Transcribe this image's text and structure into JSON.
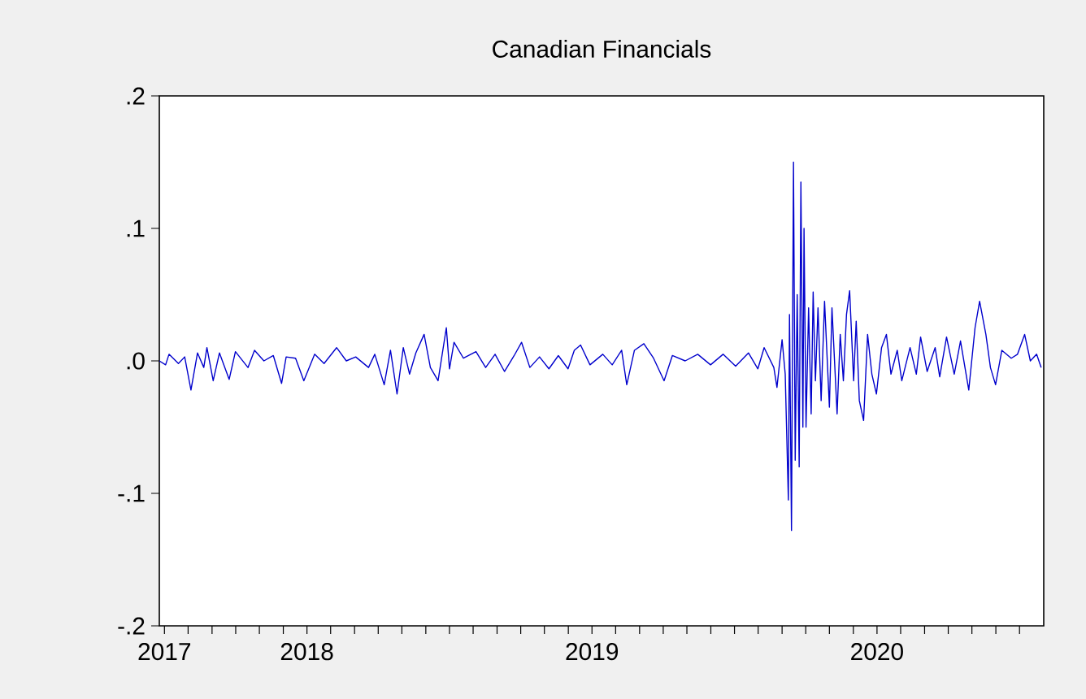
{
  "chart_data": {
    "type": "line",
    "title": "Canadian Financials",
    "x": [
      2017.482,
      2017.504,
      2017.516,
      2017.549,
      2017.571,
      2017.593,
      2017.616,
      2017.638,
      2017.649,
      2017.671,
      2017.693,
      2017.727,
      2017.749,
      2017.793,
      2017.816,
      2017.849,
      2017.882,
      2017.911,
      2017.927,
      2017.96,
      2017.989,
      2018.027,
      2018.06,
      2018.104,
      2018.138,
      2018.171,
      2018.216,
      2018.238,
      2018.271,
      2018.293,
      2018.316,
      2018.338,
      2018.36,
      2018.382,
      2018.411,
      2018.433,
      2018.46,
      2018.489,
      2018.5,
      2018.516,
      2018.549,
      2018.593,
      2018.627,
      2018.66,
      2018.693,
      2018.727,
      2018.753,
      2018.782,
      2018.816,
      2018.849,
      2018.882,
      2018.916,
      2018.938,
      2018.96,
      2018.993,
      2019.038,
      2019.071,
      2019.104,
      2019.122,
      2019.149,
      2019.182,
      2019.216,
      2019.253,
      2019.282,
      2019.327,
      2019.371,
      2019.416,
      2019.46,
      2019.504,
      2019.549,
      2019.582,
      2019.604,
      2019.638,
      2019.649,
      2019.667,
      2019.678,
      2019.689,
      2019.693,
      2019.7,
      2019.707,
      2019.713,
      2019.72,
      2019.727,
      2019.733,
      2019.74,
      2019.744,
      2019.751,
      2019.76,
      2019.769,
      2019.776,
      2019.784,
      2019.793,
      2019.804,
      2019.816,
      2019.833,
      2019.842,
      2019.86,
      2019.871,
      2019.882,
      2019.893,
      2019.904,
      2019.918,
      2019.927,
      2019.938,
      2019.953,
      2019.967,
      2019.982,
      2019.998,
      2020.016,
      2020.033,
      2020.049,
      2020.071,
      2020.087,
      2020.116,
      2020.138,
      2020.153,
      2020.176,
      2020.204,
      2020.22,
      2020.244,
      2020.271,
      2020.293,
      2020.322,
      2020.344,
      2020.36,
      2020.382,
      2020.398,
      2020.416,
      2020.438,
      2020.471,
      2020.493,
      2020.518,
      2020.538,
      2020.56,
      2020.576
    ],
    "series": [
      {
        "color": "#0000cc",
        "values": [
          0.0,
          -0.003,
          0.005,
          -0.002,
          0.003,
          -0.022,
          0.006,
          -0.005,
          0.01,
          -0.015,
          0.006,
          -0.014,
          0.007,
          -0.005,
          0.008,
          0.0,
          0.004,
          -0.017,
          0.003,
          0.002,
          -0.015,
          0.005,
          -0.002,
          0.01,
          0.0,
          0.003,
          -0.005,
          0.005,
          -0.018,
          0.008,
          -0.025,
          0.01,
          -0.01,
          0.006,
          0.02,
          -0.005,
          -0.015,
          0.025,
          -0.006,
          0.014,
          0.002,
          0.007,
          -0.005,
          0.005,
          -0.008,
          0.004,
          0.014,
          -0.005,
          0.003,
          -0.006,
          0.004,
          -0.006,
          0.008,
          0.012,
          -0.003,
          0.005,
          -0.003,
          0.008,
          -0.018,
          0.008,
          0.013,
          0.002,
          -0.015,
          0.004,
          0.0,
          0.005,
          -0.003,
          0.005,
          -0.004,
          0.006,
          -0.006,
          0.01,
          -0.005,
          -0.02,
          0.016,
          -0.01,
          -0.105,
          0.035,
          -0.128,
          0.15,
          -0.075,
          0.05,
          -0.08,
          0.135,
          -0.05,
          0.1,
          -0.05,
          0.04,
          -0.04,
          0.052,
          -0.015,
          0.04,
          -0.03,
          0.045,
          -0.035,
          0.04,
          -0.04,
          0.02,
          -0.015,
          0.035,
          0.053,
          -0.015,
          0.03,
          -0.03,
          -0.045,
          0.02,
          -0.01,
          -0.025,
          0.01,
          0.02,
          -0.01,
          0.008,
          -0.015,
          0.01,
          -0.01,
          0.018,
          -0.008,
          0.01,
          -0.012,
          0.018,
          -0.01,
          0.015,
          -0.022,
          0.025,
          0.045,
          0.02,
          -0.005,
          -0.018,
          0.008,
          0.002,
          0.005,
          0.02,
          0.0,
          0.005,
          -0.005
        ]
      }
    ],
    "line_style": "solid",
    "xlim": [
      2017.482,
      2020.585
    ],
    "xticks": [
      {
        "value": 2017.5,
        "label": "2017"
      },
      {
        "value": 2017.583,
        "label": null
      },
      {
        "value": 2017.667,
        "label": null
      },
      {
        "value": 2017.75,
        "label": null
      },
      {
        "value": 2017.833,
        "label": null
      },
      {
        "value": 2017.917,
        "label": null
      },
      {
        "value": 2018.0,
        "label": "2018"
      },
      {
        "value": 2018.083,
        "label": null
      },
      {
        "value": 2018.167,
        "label": null
      },
      {
        "value": 2018.25,
        "label": null
      },
      {
        "value": 2018.333,
        "label": null
      },
      {
        "value": 2018.417,
        "label": null
      },
      {
        "value": 2018.5,
        "label": null
      },
      {
        "value": 2018.583,
        "label": null
      },
      {
        "value": 2018.667,
        "label": null
      },
      {
        "value": 2018.75,
        "label": null
      },
      {
        "value": 2018.833,
        "label": null
      },
      {
        "value": 2018.917,
        "label": null
      },
      {
        "value": 2019.0,
        "label": "2019"
      },
      {
        "value": 2019.083,
        "label": null
      },
      {
        "value": 2019.167,
        "label": null
      },
      {
        "value": 2019.25,
        "label": null
      },
      {
        "value": 2019.333,
        "label": null
      },
      {
        "value": 2019.417,
        "label": null
      },
      {
        "value": 2019.5,
        "label": null
      },
      {
        "value": 2019.583,
        "label": null
      },
      {
        "value": 2019.667,
        "label": null
      },
      {
        "value": 2019.75,
        "label": null
      },
      {
        "value": 2019.833,
        "label": null
      },
      {
        "value": 2019.917,
        "label": null
      },
      {
        "value": 2020.0,
        "label": "2020"
      },
      {
        "value": 2020.083,
        "label": null
      },
      {
        "value": 2020.167,
        "label": null
      },
      {
        "value": 2020.25,
        "label": null
      },
      {
        "value": 2020.333,
        "label": null
      },
      {
        "value": 2020.417,
        "label": null
      },
      {
        "value": 2020.5,
        "label": null
      }
    ],
    "ylim": [
      -0.2,
      0.2
    ],
    "yticks": [
      {
        "value": -0.2,
        "label": "-.2"
      },
      {
        "value": -0.1,
        "label": "-.1"
      },
      {
        "value": 0.0,
        "label": ".0"
      },
      {
        "value": 0.1,
        "label": ".1"
      },
      {
        "value": 0.2,
        "label": ".2"
      }
    ]
  }
}
